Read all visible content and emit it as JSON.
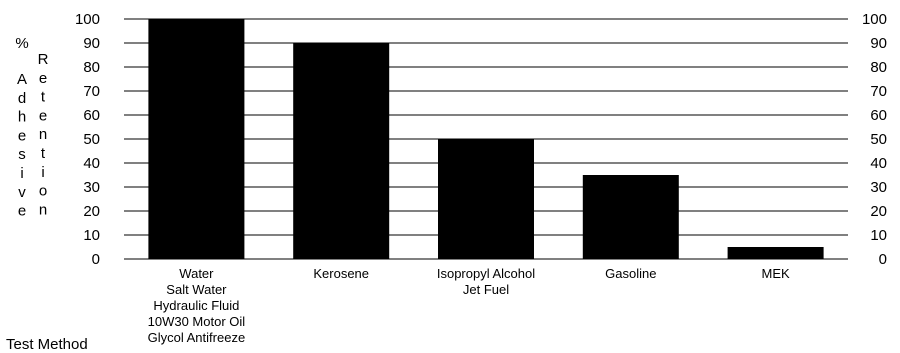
{
  "chart_data": {
    "type": "bar",
    "ylabel_left_lines": [
      "%",
      "Adhesive"
    ],
    "ylabel_right_word": "Retention",
    "ylim": [
      0,
      100
    ],
    "yticks": [
      0,
      10,
      20,
      30,
      40,
      50,
      60,
      70,
      80,
      90,
      100
    ],
    "categories": [
      "Water\nSalt Water\nHydraulic Fluid\n10W30 Motor Oil\nGlycol Antifreeze",
      "Kerosene",
      "Isopropyl Alcohol\nJet Fuel",
      "Gasoline",
      "MEK"
    ],
    "values": [
      100,
      90,
      50,
      35,
      5
    ],
    "bar_color": "#000000",
    "grid": true,
    "gridline_color": "#000000"
  },
  "footer_text": "Test Method"
}
